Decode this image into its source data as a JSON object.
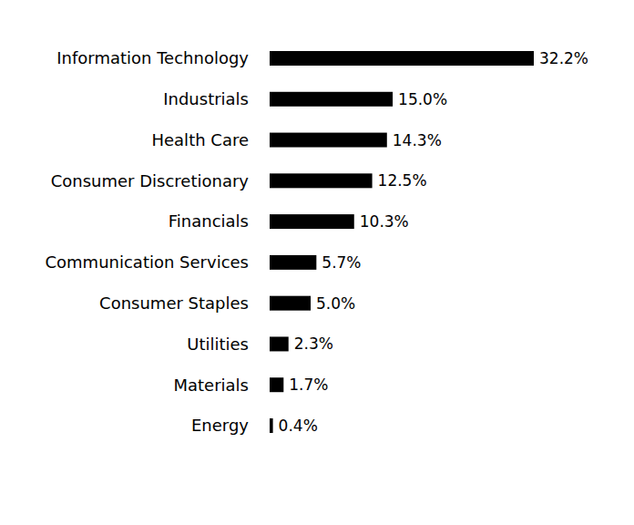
{
  "chart_data": {
    "type": "bar",
    "orientation": "horizontal",
    "categories": [
      "Information Technology",
      "Industrials",
      "Health Care",
      "Consumer Discretionary",
      "Financials",
      "Communication Services",
      "Consumer Staples",
      "Utilities",
      "Materials",
      "Energy"
    ],
    "values": [
      32.2,
      15.0,
      14.3,
      12.5,
      10.3,
      5.7,
      5.0,
      2.3,
      1.7,
      0.4
    ],
    "value_labels": [
      "32.2%",
      "15.0%",
      "14.3%",
      "12.5%",
      "10.3%",
      "5.7%",
      "5.0%",
      "2.3%",
      "1.7%",
      "0.4%"
    ],
    "color": "#000000",
    "xlim": [
      0,
      32.2
    ],
    "data_labels": true,
    "tick_labels": "y",
    "grid": false
  }
}
